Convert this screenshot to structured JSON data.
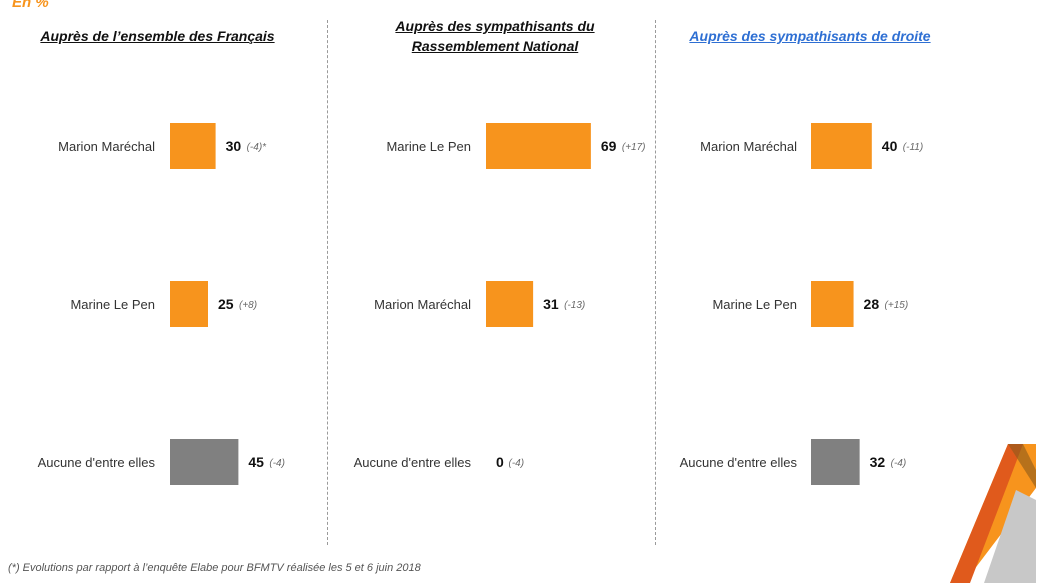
{
  "unit_label": "En %",
  "footnote": "(*) Evolutions par rapport à l’enquête Elabe pour BFMTV réalisée les 5 et 6 juin 2018",
  "colors": {
    "orange": "#f7941d",
    "grey": "#808080",
    "title_blue": "#2e6fd3"
  },
  "panels": [
    {
      "title": "Auprès de l’ensemble des Français"
    },
    {
      "title_line1": "Auprès des sympathisants du",
      "title_line2": "Rassemblement National"
    },
    {
      "title": "Auprès des sympathisants de droite"
    }
  ],
  "chart_data": [
    {
      "type": "bar",
      "orientation": "horizontal",
      "title": "Auprès de l’ensemble des Français",
      "categories": [
        "Marion Maréchal",
        "Marine Le Pen",
        "Aucune d'entre elles"
      ],
      "values": [
        30,
        25,
        45
      ],
      "value_labels": [
        "30",
        "25",
        "45"
      ],
      "evolutions": [
        "(-4)*",
        "(+8)",
        "(-4)"
      ],
      "bar_colors": [
        "#f7941d",
        "#f7941d",
        "#808080"
      ]
    },
    {
      "type": "bar",
      "orientation": "horizontal",
      "title": "Auprès des sympathisants du Rassemblement National",
      "categories": [
        "Marine Le Pen",
        "Marion Maréchal",
        "Aucune d'entre elles"
      ],
      "values": [
        69,
        31,
        0
      ],
      "value_labels": [
        "69",
        "31",
        "0"
      ],
      "evolutions": [
        "(+17)",
        "(-13)",
        "(-4)"
      ],
      "bar_colors": [
        "#f7941d",
        "#f7941d",
        "#808080"
      ]
    },
    {
      "type": "bar",
      "orientation": "horizontal",
      "title": "Auprès des sympathisants de droite",
      "categories": [
        "Marion Maréchal",
        "Marine Le Pen",
        "Aucune d'entre elles"
      ],
      "values": [
        40,
        28,
        32
      ],
      "value_labels": [
        "40",
        "28",
        "32"
      ],
      "evolutions": [
        "(-11)",
        "(+15)",
        "(-4)"
      ],
      "bar_colors": [
        "#f7941d",
        "#f7941d",
        "#808080"
      ]
    }
  ]
}
